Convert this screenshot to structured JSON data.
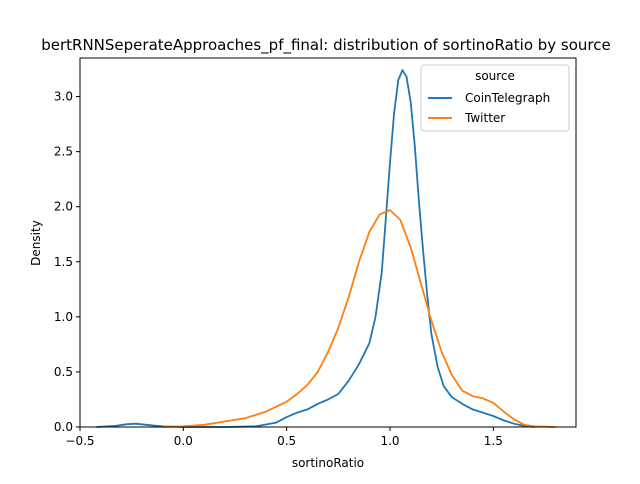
{
  "chart_data": {
    "type": "line",
    "title": "bertRNNSeperateApproaches_pf_final: distribution of sortinoRatio by source",
    "xlabel": "sortinoRatio",
    "ylabel": "Density",
    "xlim": [
      -0.5,
      1.9
    ],
    "ylim": [
      0,
      3.35
    ],
    "xticks": [
      -0.5,
      0.0,
      0.5,
      1.0,
      1.5
    ],
    "xtick_labels": [
      "−0.5",
      "0.0",
      "0.5",
      "1.0",
      "1.5"
    ],
    "yticks": [
      0.0,
      0.5,
      1.0,
      1.5,
      2.0,
      2.5,
      3.0
    ],
    "ytick_labels": [
      "0.0",
      "0.5",
      "1.0",
      "1.5",
      "2.0",
      "2.5",
      "3.0"
    ],
    "grid": false,
    "legend": {
      "title": "source",
      "placement": "top-right"
    },
    "series": [
      {
        "name": "CoinTelegraph",
        "color": "#1f77b4",
        "points": [
          [
            -0.42,
            0.0
          ],
          [
            -0.33,
            0.01
          ],
          [
            -0.27,
            0.025
          ],
          [
            -0.23,
            0.03
          ],
          [
            -0.18,
            0.02
          ],
          [
            -0.1,
            0.005
          ],
          [
            0.0,
            0.0
          ],
          [
            0.2,
            0.0
          ],
          [
            0.35,
            0.005
          ],
          [
            0.45,
            0.04
          ],
          [
            0.5,
            0.09
          ],
          [
            0.55,
            0.13
          ],
          [
            0.6,
            0.16
          ],
          [
            0.65,
            0.21
          ],
          [
            0.7,
            0.25
          ],
          [
            0.75,
            0.3
          ],
          [
            0.8,
            0.42
          ],
          [
            0.85,
            0.57
          ],
          [
            0.9,
            0.76
          ],
          [
            0.93,
            1.0
          ],
          [
            0.96,
            1.4
          ],
          [
            0.98,
            1.9
          ],
          [
            1.0,
            2.4
          ],
          [
            1.02,
            2.85
          ],
          [
            1.04,
            3.15
          ],
          [
            1.06,
            3.24
          ],
          [
            1.08,
            3.18
          ],
          [
            1.1,
            2.95
          ],
          [
            1.12,
            2.55
          ],
          [
            1.14,
            2.05
          ],
          [
            1.16,
            1.6
          ],
          [
            1.18,
            1.2
          ],
          [
            1.2,
            0.85
          ],
          [
            1.23,
            0.55
          ],
          [
            1.26,
            0.37
          ],
          [
            1.3,
            0.27
          ],
          [
            1.35,
            0.21
          ],
          [
            1.4,
            0.16
          ],
          [
            1.45,
            0.13
          ],
          [
            1.5,
            0.1
          ],
          [
            1.55,
            0.06
          ],
          [
            1.6,
            0.03
          ],
          [
            1.65,
            0.01
          ],
          [
            1.7,
            0.0
          ]
        ]
      },
      {
        "name": "Twitter",
        "color": "#ff7f0e",
        "points": [
          [
            -0.1,
            0.0
          ],
          [
            0.0,
            0.005
          ],
          [
            0.1,
            0.02
          ],
          [
            0.2,
            0.05
          ],
          [
            0.3,
            0.08
          ],
          [
            0.4,
            0.14
          ],
          [
            0.5,
            0.23
          ],
          [
            0.55,
            0.3
          ],
          [
            0.6,
            0.38
          ],
          [
            0.65,
            0.5
          ],
          [
            0.7,
            0.68
          ],
          [
            0.75,
            0.9
          ],
          [
            0.8,
            1.18
          ],
          [
            0.85,
            1.5
          ],
          [
            0.9,
            1.77
          ],
          [
            0.95,
            1.93
          ],
          [
            1.0,
            1.97
          ],
          [
            1.05,
            1.88
          ],
          [
            1.1,
            1.63
          ],
          [
            1.15,
            1.3
          ],
          [
            1.2,
            0.97
          ],
          [
            1.25,
            0.68
          ],
          [
            1.3,
            0.47
          ],
          [
            1.35,
            0.33
          ],
          [
            1.4,
            0.28
          ],
          [
            1.45,
            0.26
          ],
          [
            1.5,
            0.22
          ],
          [
            1.55,
            0.14
          ],
          [
            1.6,
            0.07
          ],
          [
            1.65,
            0.02
          ],
          [
            1.7,
            0.005
          ],
          [
            1.8,
            0.0
          ]
        ]
      }
    ]
  }
}
